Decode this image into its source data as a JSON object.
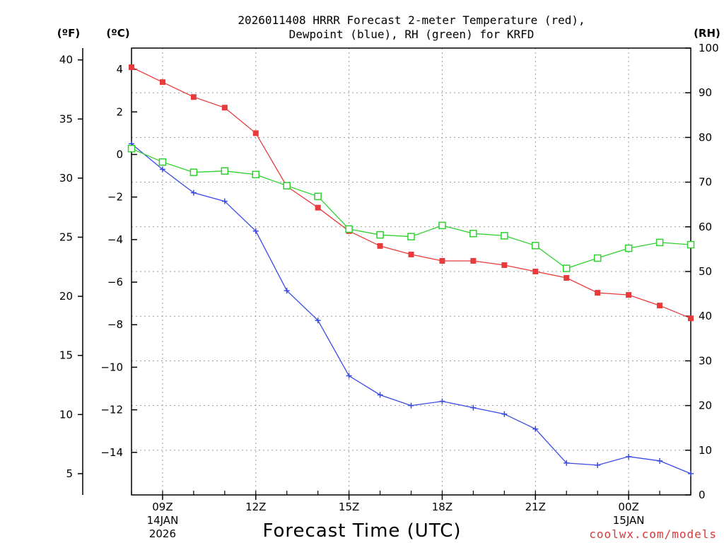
{
  "chart_data": {
    "type": "line",
    "title_line1": "2026011408 HRRR Forecast 2-meter Temperature (red),",
    "title_line2": "Dewpoint (blue), RH (green) for KRFD",
    "xlabel": "Forecast Time (UTC)",
    "credit": "coolwx.com/models",
    "unit_f": "(ºF)",
    "unit_c": "(ºC)",
    "unit_rh": "(RH)",
    "hours": [
      8,
      9,
      10,
      11,
      12,
      13,
      14,
      15,
      16,
      17,
      18,
      19,
      20,
      21,
      22,
      23,
      24,
      25,
      26
    ],
    "xlim": [
      8,
      26
    ],
    "x_ticks": [
      {
        "h": 9,
        "label": "09Z",
        "sub1": "14JAN",
        "sub2": "2026"
      },
      {
        "h": 12,
        "label": "12Z",
        "sub1": "",
        "sub2": ""
      },
      {
        "h": 15,
        "label": "15Z",
        "sub1": "",
        "sub2": ""
      },
      {
        "h": 18,
        "label": "18Z",
        "sub1": "",
        "sub2": ""
      },
      {
        "h": 21,
        "label": "21Z",
        "sub1": "",
        "sub2": ""
      },
      {
        "h": 24,
        "label": "00Z",
        "sub1": "15JAN",
        "sub2": ""
      }
    ],
    "celsius_axis": {
      "ylim": [
        -16,
        5
      ],
      "ticks": [
        4,
        2,
        0,
        -2,
        -4,
        -6,
        -8,
        -10,
        -12,
        -14
      ],
      "labels": [
        "4",
        "2",
        "0",
        "−2",
        "−4",
        "−6",
        "−8",
        "−10",
        "−12",
        "−14"
      ]
    },
    "fahrenheit_axis": {
      "ticks": [
        40,
        35,
        30,
        25,
        20,
        15,
        10,
        5
      ],
      "labels": [
        "40",
        "35",
        "30",
        "25",
        "20",
        "15",
        "10",
        "5"
      ]
    },
    "rh_axis": {
      "ylim": [
        0,
        100
      ],
      "ticks": [
        0,
        10,
        20,
        30,
        40,
        50,
        60,
        70,
        80,
        90,
        100
      ],
      "labels": [
        "0",
        "10",
        "20",
        "30",
        "40",
        "50",
        "60",
        "70",
        "80",
        "90",
        "100"
      ]
    },
    "series": [
      {
        "name": "Temperature",
        "units": "C",
        "color": "#e83a3a",
        "marker": "filled-square",
        "values": [
          4.1,
          3.4,
          2.7,
          2.2,
          1.0,
          -1.5,
          -2.5,
          -3.6,
          -4.3,
          -4.7,
          -5.0,
          -5.0,
          -5.2,
          -5.5,
          -5.8,
          -6.5,
          -6.6,
          -7.1,
          -7.7
        ]
      },
      {
        "name": "Dewpoint",
        "units": "C",
        "color": "#3a4ae8",
        "marker": "plus",
        "values": [
          0.5,
          -0.7,
          -1.8,
          -2.2,
          -3.6,
          -6.4,
          -7.8,
          -10.4,
          -11.3,
          -11.8,
          -11.6,
          -11.9,
          -12.2,
          -12.9,
          -14.5,
          -14.6,
          -14.2,
          -14.4,
          -15.0
        ]
      },
      {
        "name": "RH",
        "units": "%",
        "color": "#2ed12e",
        "marker": "open-square",
        "values": [
          77.5,
          74.5,
          72.2,
          72.5,
          71.7,
          69.2,
          66.8,
          59.5,
          58.2,
          57.8,
          60.3,
          58.5,
          58.0,
          55.8,
          50.7,
          53.0,
          55.2,
          56.5,
          56.0
        ]
      }
    ]
  }
}
